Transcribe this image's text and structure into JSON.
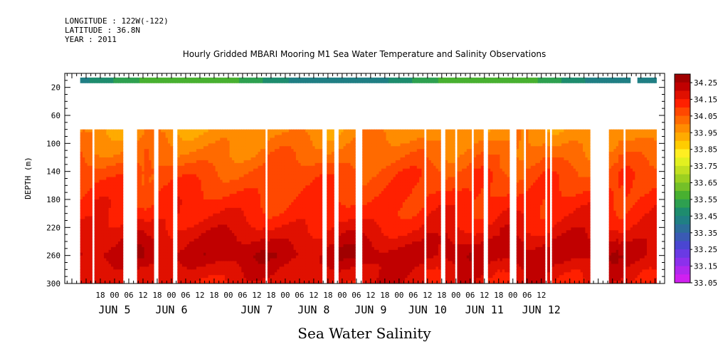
{
  "header": {
    "longitude": "LONGITUDE : 122W(-122)",
    "latitude": "LATITUDE : 36.8N",
    "year": "YEAR : 2011"
  },
  "chart_data": {
    "type": "heatmap",
    "title": "Hourly Gridded MBARI Mooring M1 Sea Water Temperature and Salinity Observations",
    "xlabel": "Sea Water Salinity",
    "ylabel": "DEPTH (m)",
    "ylim": [
      300,
      0
    ],
    "y_ticks": [
      "20",
      "60",
      "100",
      "140",
      "180",
      "220",
      "260",
      "300"
    ],
    "y_tick_values": [
      20,
      60,
      100,
      140,
      180,
      220,
      260,
      300
    ],
    "x_hour_ticks": [
      "18",
      "00",
      "06",
      "12",
      "18",
      "00",
      "06",
      "12",
      "18",
      "00",
      "06",
      "12",
      "18",
      "00",
      "06",
      "12",
      "18",
      "00",
      "06",
      "12",
      "18",
      "00",
      "06",
      "12",
      "18",
      "00",
      "06",
      "12",
      "18",
      "00",
      "06",
      "12"
    ],
    "x_day_labels": [
      "JUN  5",
      "JUN  6",
      "JUN  7",
      "JUN  8",
      "JUN  9",
      "JUN 10",
      "JUN 11",
      "JUN 12"
    ],
    "legend_position": "right",
    "colorbar": {
      "labels": [
        "34.25",
        "34.15",
        "34.05",
        "33.95",
        "33.85",
        "33.75",
        "33.65",
        "33.55",
        "33.45",
        "33.35",
        "33.25",
        "33.15",
        "33.05"
      ],
      "colors": [
        "#a00000",
        "#c00000",
        "#e01000",
        "#ff2000",
        "#ff4800",
        "#ff6a00",
        "#ff8c00",
        "#ffab00",
        "#ffcc00",
        "#ffee22",
        "#e2f020",
        "#c2e020",
        "#9cd020",
        "#74c028",
        "#48b030",
        "#2ea050",
        "#1e8c6e",
        "#207f84",
        "#2c6d9a",
        "#3a5ab4",
        "#4a46d2",
        "#6a3ae4",
        "#8c30ec",
        "#b028ee",
        "#d020f0"
      ]
    },
    "surface_band": {
      "depth_m": 10,
      "value_range": [
        33.4,
        33.6
      ]
    },
    "data_segments_hours_from_jun5_00": [
      [
        -14,
        -10
      ],
      [
        -8,
        3
      ],
      [
        10,
        12
      ],
      [
        13,
        16
      ],
      [
        19,
        24
      ],
      [
        27,
        63
      ],
      [
        65,
        87
      ],
      [
        90,
        92
      ],
      [
        95,
        101
      ],
      [
        105,
        130
      ],
      [
        132,
        137
      ],
      [
        140,
        143
      ],
      [
        145,
        150
      ],
      [
        152,
        155
      ],
      [
        158,
        162
      ],
      [
        163,
        166
      ],
      [
        170,
        172
      ],
      [
        174,
        181
      ],
      [
        183,
        183
      ],
      [
        185,
        200
      ],
      [
        209,
        212
      ],
      [
        213,
        214
      ],
      [
        216,
        228
      ]
    ],
    "profile": {
      "depth_m": [
        80,
        100,
        120,
        140,
        160,
        180,
        200,
        220,
        240,
        260,
        280,
        300
      ],
      "salinity": [
        33.97,
        34.0,
        34.03,
        34.07,
        34.09,
        34.11,
        34.13,
        34.16,
        34.2,
        34.23,
        34.19,
        34.17
      ]
    },
    "data_range_depth_m": [
      80,
      300
    ]
  }
}
